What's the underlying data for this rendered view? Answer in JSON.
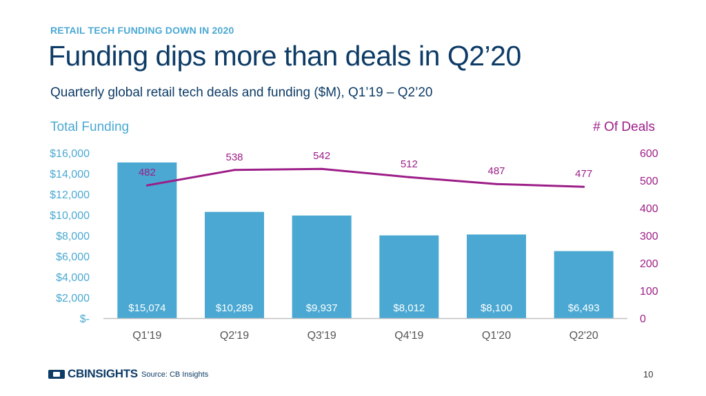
{
  "header": {
    "kicker": "RETAIL TECH FUNDING DOWN IN 2020",
    "title": "Funding dips more than deals in Q2’20",
    "subtitle": "Quarterly global retail tech deals and funding ($M), Q1’19 – Q2’20"
  },
  "footer": {
    "logo_text": "CBINSIGHTS",
    "source": "Source: CB Insights",
    "page_number": "10"
  },
  "colors": {
    "bar": "#4aa8d2",
    "line": "#9c1d88",
    "left_axis": "#4aa8d2",
    "right_axis": "#9c1d88",
    "title": "#0d3b66"
  },
  "chart_data": {
    "type": "bar",
    "categories": [
      "Q1'19",
      "Q2'19",
      "Q3'19",
      "Q4'19",
      "Q1'20",
      "Q2'20"
    ],
    "series": [
      {
        "name": "Total Funding",
        "type": "bar",
        "axis": "left",
        "values": [
          15074,
          10289,
          9937,
          8012,
          8100,
          6493
        ],
        "labels": [
          "$15,074",
          "$10,289",
          "$9,937",
          "$8,012",
          "$8,100",
          "$6,493"
        ]
      },
      {
        "name": "# Of Deals",
        "type": "line",
        "axis": "right",
        "values": [
          482,
          538,
          542,
          512,
          487,
          477
        ],
        "labels": [
          "482",
          "538",
          "542",
          "512",
          "487",
          "477"
        ]
      }
    ],
    "left_axis": {
      "label": "Total Funding",
      "range": [
        0,
        16000
      ],
      "ticks": [
        0,
        2000,
        4000,
        6000,
        8000,
        10000,
        12000,
        14000,
        16000
      ],
      "tick_labels": [
        "$-",
        "$2,000",
        "$4,000",
        "$6,000",
        "$8,000",
        "$10,000",
        "$12,000",
        "$14,000",
        "$16,000"
      ]
    },
    "right_axis": {
      "label": "# Of Deals",
      "range": [
        0,
        600
      ],
      "ticks": [
        0,
        100,
        200,
        300,
        400,
        500,
        600
      ],
      "tick_labels": [
        "0",
        "100",
        "200",
        "300",
        "400",
        "500",
        "600"
      ]
    },
    "grid": false,
    "legend": "none"
  }
}
